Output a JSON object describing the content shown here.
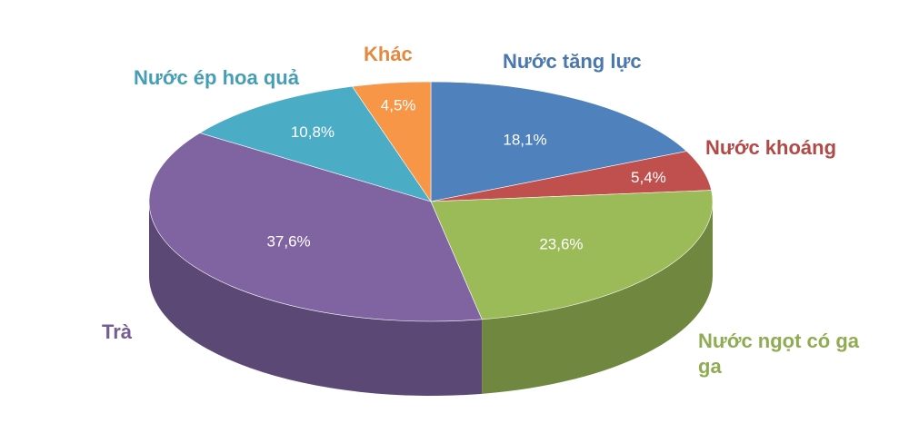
{
  "chart_data": {
    "type": "pie",
    "categories": [
      "Nước tăng lực",
      "Nước khoáng",
      "Nước ngọt có ga ga",
      "Trà",
      "Nước ép hoa quả",
      "Khác"
    ],
    "values": [
      18.1,
      5.4,
      23.6,
      37.6,
      10.8,
      4.5
    ],
    "value_labels": [
      "18,1%",
      "5,4%",
      "23,6%",
      "37,6%",
      "10,8%",
      "4,5%"
    ],
    "colors": [
      "#4f81bd",
      "#c0504d",
      "#9bbb59",
      "#8064a2",
      "#4bacc6",
      "#f79646"
    ]
  }
}
